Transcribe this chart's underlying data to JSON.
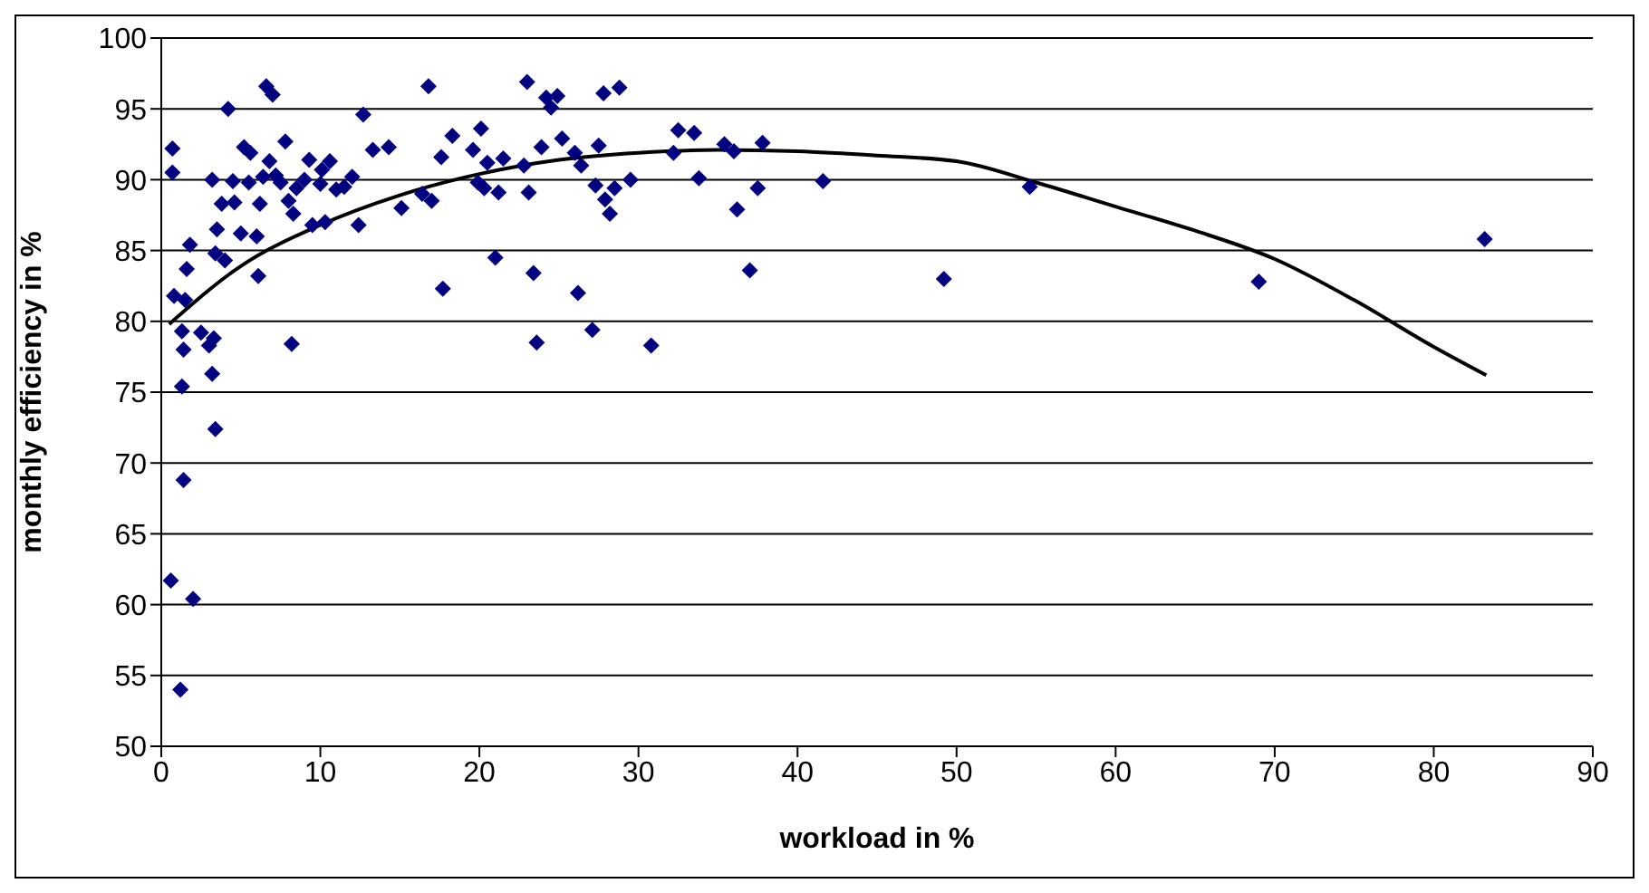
{
  "chart_data": {
    "type": "scatter",
    "xlabel": "workload in %",
    "ylabel": "monthly efficiency in %",
    "xlim": [
      0,
      90
    ],
    "xticks": [
      0,
      10,
      20,
      30,
      40,
      50,
      60,
      70,
      80,
      90
    ],
    "ylim": [
      50,
      100
    ],
    "yticks": [
      50,
      55,
      60,
      65,
      70,
      75,
      80,
      85,
      90,
      95,
      100
    ],
    "grid": "y",
    "series": [
      {
        "color": "#000080",
        "marker": "diamond",
        "x": [
          0.6,
          1.2,
          2.0,
          1.4,
          0.8,
          1.3,
          1.3,
          1.5,
          1.8,
          1.6,
          1.4,
          2.5,
          3,
          3.3,
          3.2,
          3.4,
          0.7,
          0.7,
          8.2,
          3.2,
          3.5,
          3.8,
          3.4,
          4,
          4.2,
          4.5,
          4.6,
          5,
          5.2,
          5.5,
          5.6,
          6,
          6.1,
          6.2,
          6.4,
          6.6,
          7,
          6.8,
          7.2,
          7.5,
          7.8,
          8,
          8.3,
          8.5,
          9,
          9.3,
          9.5,
          10,
          10.1,
          10.3,
          10.6,
          11,
          11.5,
          12,
          12.4,
          12.7,
          13.3,
          14.3,
          15.1,
          16.4,
          16.8,
          17,
          17.6,
          17.7,
          18.3,
          19.6,
          19.9,
          20.1,
          20.3,
          20.5,
          21,
          21.2,
          21.5,
          22.8,
          23,
          23.1,
          23.4,
          23.6,
          23.9,
          24.2,
          24.5,
          24.9,
          25.2,
          26,
          26.2,
          26.4,
          27.1,
          27.3,
          27.5,
          27.8,
          27.9,
          28.2,
          28.5,
          28.8,
          29.5,
          30.8,
          32.2,
          32.5,
          33.5,
          33.8,
          35.4,
          36,
          36.2,
          37,
          37.5,
          37.8,
          41.6,
          49.2,
          54.6,
          69,
          83.2
        ],
        "values": [
          61.7,
          54,
          60.4,
          68.8,
          81.8,
          79.3,
          75.4,
          81.5,
          85.4,
          83.7,
          78,
          79.2,
          78.3,
          78.8,
          76.3,
          72.4,
          92.2,
          90.5,
          78.4,
          90,
          86.5,
          88.3,
          84.8,
          84.3,
          95,
          89.9,
          88.4,
          86.2,
          92.3,
          89.8,
          91.9,
          86,
          83.2,
          88.3,
          90.2,
          96.6,
          96,
          91.3,
          90.3,
          89.8,
          92.7,
          88.5,
          87.6,
          89.4,
          90,
          91.4,
          86.8,
          89.7,
          90.7,
          87,
          91.3,
          89.3,
          89.5,
          90.2,
          86.8,
          94.6,
          92.1,
          92.3,
          88,
          89,
          96.6,
          88.5,
          91.6,
          82.3,
          93.1,
          92.1,
          89.8,
          93.6,
          89.4,
          91.2,
          84.5,
          89.1,
          91.5,
          91,
          96.9,
          89.1,
          83.4,
          78.5,
          92.3,
          95.8,
          95.1,
          95.9,
          92.9,
          91.9,
          82,
          91,
          79.4,
          89.6,
          92.4,
          96.1,
          88.6,
          87.6,
          89.4,
          96.5,
          90,
          78.3,
          91.9,
          93.5,
          93.3,
          90.1,
          92.5,
          92,
          87.9,
          83.6,
          89.4,
          92.6,
          89.9,
          83,
          89.5,
          82.8,
          85.8
        ]
      },
      {
        "type": "line",
        "color": "#000000",
        "marker": "none",
        "line_style": "solid",
        "x": [
          0.5,
          5,
          10,
          15,
          20,
          25,
          30,
          35,
          40,
          45,
          50,
          55,
          60,
          65,
          70,
          75,
          80,
          83.3
        ],
        "values": [
          79.8,
          83.9,
          86.8,
          88.9,
          90.4,
          91.4,
          91.9,
          92.1,
          92,
          91.7,
          91.3,
          89.8,
          88.1,
          86.4,
          84.4,
          81.5,
          78.2,
          76.2
        ]
      }
    ]
  }
}
